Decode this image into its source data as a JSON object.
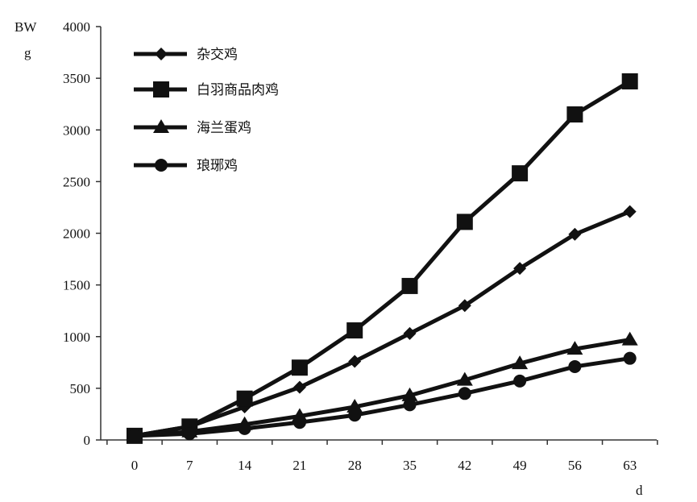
{
  "chart_data": {
    "type": "line",
    "ylabel_top": "BW",
    "ylabel_unit": "g",
    "xlabel": "d",
    "x": [
      0,
      7,
      14,
      21,
      28,
      35,
      42,
      49,
      56,
      63
    ],
    "ylim": [
      0,
      4000
    ],
    "yticks": [
      0,
      500,
      1000,
      1500,
      2000,
      2500,
      3000,
      3500,
      4000
    ],
    "grid": false,
    "legend_position": "top-left",
    "series": [
      {
        "name": "杂交鸡",
        "marker": "diamond",
        "values": [
          40,
          130,
          320,
          510,
          760,
          1030,
          1300,
          1660,
          1990,
          2210
        ]
      },
      {
        "name": "白羽商品肉鸡",
        "marker": "square",
        "values": [
          40,
          130,
          400,
          700,
          1060,
          1490,
          2110,
          2580,
          3150,
          3470
        ]
      },
      {
        "name": "海兰蛋鸡",
        "marker": "triangle",
        "values": [
          40,
          80,
          150,
          230,
          320,
          430,
          580,
          740,
          880,
          970
        ]
      },
      {
        "name": "琅琊鸡",
        "marker": "circle",
        "values": [
          40,
          60,
          110,
          170,
          240,
          340,
          450,
          570,
          710,
          790
        ]
      }
    ]
  }
}
